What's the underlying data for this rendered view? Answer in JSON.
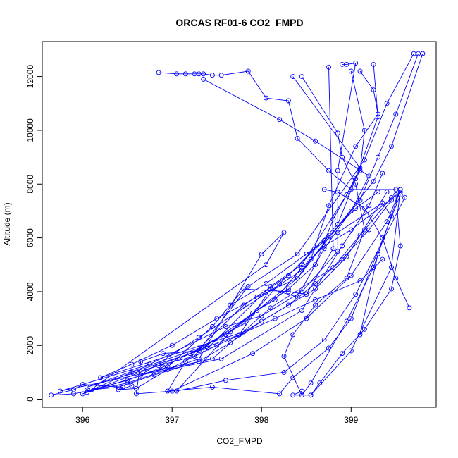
{
  "chart_data": {
    "type": "line",
    "title": "ORCAS RF01-6 CO2_FMPD",
    "xlabel": "CO2_FMPD",
    "ylabel": "Altitude (m)",
    "xlim": [
      395.55,
      399.95
    ],
    "ylim": [
      -300,
      13300
    ],
    "xticks": [
      396,
      397,
      398,
      399
    ],
    "yticks": [
      0,
      2000,
      4000,
      6000,
      8000,
      10000,
      12000
    ],
    "grid": false,
    "legend": "none",
    "series_color": "#0000ff",
    "series": [
      {
        "values": [
          {
            "x": 396.45,
            "y": 450
          },
          {
            "x": 396.0,
            "y": 550
          },
          {
            "x": 395.9,
            "y": 350
          },
          {
            "x": 395.65,
            "y": 150
          },
          {
            "x": 395.9,
            "y": 200
          },
          {
            "x": 396.5,
            "y": 600
          },
          {
            "x": 397.3,
            "y": 1500
          },
          {
            "x": 398.0,
            "y": 5400
          },
          {
            "x": 398.25,
            "y": 6200
          },
          {
            "x": 398.05,
            "y": 5000
          },
          {
            "x": 396.05,
            "y": 250
          },
          {
            "x": 397.75,
            "y": 2400
          },
          {
            "x": 398.1,
            "y": 4100
          },
          {
            "x": 398.4,
            "y": 3800
          },
          {
            "x": 398.7,
            "y": 5600
          },
          {
            "x": 399.0,
            "y": 7000
          },
          {
            "x": 399.2,
            "y": 8300
          },
          {
            "x": 398.6,
            "y": 9600
          },
          {
            "x": 398.2,
            "y": 10400
          },
          {
            "x": 397.35,
            "y": 11900
          }
        ]
      },
      {
        "values": [
          {
            "x": 396.85,
            "y": 12150
          },
          {
            "x": 397.05,
            "y": 12100
          },
          {
            "x": 397.15,
            "y": 12100
          },
          {
            "x": 397.25,
            "y": 12100
          },
          {
            "x": 397.3,
            "y": 12100
          },
          {
            "x": 397.35,
            "y": 12100
          },
          {
            "x": 397.45,
            "y": 12050
          },
          {
            "x": 397.55,
            "y": 12050
          },
          {
            "x": 397.85,
            "y": 12200
          },
          {
            "x": 398.05,
            "y": 11200
          },
          {
            "x": 398.3,
            "y": 11100
          },
          {
            "x": 398.4,
            "y": 9700
          },
          {
            "x": 398.75,
            "y": 8500
          },
          {
            "x": 399.0,
            "y": 7800
          },
          {
            "x": 399.5,
            "y": 7800
          }
        ]
      },
      {
        "values": [
          {
            "x": 398.45,
            "y": 12000
          },
          {
            "x": 398.85,
            "y": 9900
          },
          {
            "x": 398.9,
            "y": 9000
          },
          {
            "x": 399.05,
            "y": 8000
          },
          {
            "x": 399.15,
            "y": 6300
          },
          {
            "x": 398.95,
            "y": 4500
          },
          {
            "x": 398.6,
            "y": 3500
          },
          {
            "x": 398.35,
            "y": 2400
          },
          {
            "x": 398.25,
            "y": 1600
          },
          {
            "x": 398.45,
            "y": 150
          },
          {
            "x": 398.55,
            "y": 600
          },
          {
            "x": 398.95,
            "y": 2900
          },
          {
            "x": 399.25,
            "y": 4900
          },
          {
            "x": 399.55,
            "y": 7800
          },
          {
            "x": 399.45,
            "y": 4900
          },
          {
            "x": 399.0,
            "y": 1800
          },
          {
            "x": 398.55,
            "y": 150
          }
        ]
      },
      {
        "values": [
          {
            "x": 398.75,
            "y": 12350
          },
          {
            "x": 398.8,
            "y": 5600
          },
          {
            "x": 398.5,
            "y": 3900
          },
          {
            "x": 398.3,
            "y": 4000
          },
          {
            "x": 397.8,
            "y": 4100
          },
          {
            "x": 397.45,
            "y": 2700
          },
          {
            "x": 396.95,
            "y": 1200
          },
          {
            "x": 396.0,
            "y": 200
          },
          {
            "x": 396.55,
            "y": 1000
          },
          {
            "x": 397.4,
            "y": 1900
          },
          {
            "x": 398.1,
            "y": 4200
          },
          {
            "x": 398.45,
            "y": 5000
          },
          {
            "x": 398.95,
            "y": 7600
          },
          {
            "x": 399.1,
            "y": 8600
          },
          {
            "x": 398.35,
            "y": 12000
          }
        ]
      },
      {
        "values": [
          {
            "x": 398.9,
            "y": 12450
          },
          {
            "x": 398.95,
            "y": 12450
          },
          {
            "x": 399.05,
            "y": 12500
          },
          {
            "x": 398.85,
            "y": 8500
          },
          {
            "x": 398.85,
            "y": 5500
          },
          {
            "x": 398.45,
            "y": 4000
          },
          {
            "x": 398.0,
            "y": 3100
          },
          {
            "x": 397.6,
            "y": 2700
          },
          {
            "x": 396.75,
            "y": 1300
          },
          {
            "x": 395.75,
            "y": 300
          },
          {
            "x": 397.45,
            "y": 1500
          },
          {
            "x": 398.1,
            "y": 3400
          },
          {
            "x": 398.8,
            "y": 4900
          },
          {
            "x": 399.1,
            "y": 6100
          },
          {
            "x": 399.45,
            "y": 7500
          }
        ]
      },
      {
        "values": [
          {
            "x": 399.0,
            "y": 12200
          },
          {
            "x": 399.15,
            "y": 10000
          },
          {
            "x": 399.1,
            "y": 8500
          },
          {
            "x": 398.8,
            "y": 6700
          },
          {
            "x": 398.6,
            "y": 5000
          },
          {
            "x": 398.3,
            "y": 4100
          },
          {
            "x": 397.95,
            "y": 3300
          },
          {
            "x": 397.3,
            "y": 1800
          },
          {
            "x": 396.9,
            "y": 1700
          },
          {
            "x": 396.65,
            "y": 1400
          },
          {
            "x": 396.6,
            "y": 200
          },
          {
            "x": 397.0,
            "y": 300
          },
          {
            "x": 397.9,
            "y": 1700
          },
          {
            "x": 398.5,
            "y": 3000
          },
          {
            "x": 399.0,
            "y": 4600
          },
          {
            "x": 399.4,
            "y": 6600
          },
          {
            "x": 399.55,
            "y": 7800
          }
        ]
      },
      {
        "values": [
          {
            "x": 399.1,
            "y": 12200
          },
          {
            "x": 399.25,
            "y": 11500
          },
          {
            "x": 399.3,
            "y": 10600
          },
          {
            "x": 399.05,
            "y": 9400
          },
          {
            "x": 398.75,
            "y": 7200
          },
          {
            "x": 398.55,
            "y": 5200
          },
          {
            "x": 398.4,
            "y": 4500
          },
          {
            "x": 397.65,
            "y": 2500
          },
          {
            "x": 397.05,
            "y": 300
          },
          {
            "x": 397.6,
            "y": 700
          },
          {
            "x": 398.25,
            "y": 1000
          },
          {
            "x": 398.7,
            "y": 2200
          },
          {
            "x": 399.05,
            "y": 3900
          },
          {
            "x": 399.6,
            "y": 7500
          }
        ]
      },
      {
        "values": [
          {
            "x": 399.25,
            "y": 12450
          },
          {
            "x": 399.3,
            "y": 10500
          },
          {
            "x": 399.05,
            "y": 8200
          },
          {
            "x": 398.85,
            "y": 6500
          },
          {
            "x": 398.3,
            "y": 4600
          },
          {
            "x": 397.8,
            "y": 3500
          },
          {
            "x": 397.15,
            "y": 1400
          },
          {
            "x": 396.95,
            "y": 300
          },
          {
            "x": 397.45,
            "y": 450
          },
          {
            "x": 398.2,
            "y": 200
          },
          {
            "x": 398.35,
            "y": 800
          },
          {
            "x": 398.75,
            "y": 1900
          },
          {
            "x": 399.0,
            "y": 3000
          },
          {
            "x": 399.55,
            "y": 7600
          }
        ]
      },
      {
        "values": [
          {
            "x": 399.75,
            "y": 12850
          },
          {
            "x": 399.5,
            "y": 10600
          },
          {
            "x": 399.3,
            "y": 9000
          },
          {
            "x": 399.1,
            "y": 7400
          },
          {
            "x": 398.45,
            "y": 4800
          },
          {
            "x": 397.3,
            "y": 2300
          },
          {
            "x": 396.65,
            "y": 900
          },
          {
            "x": 397.55,
            "y": 1500
          },
          {
            "x": 398.45,
            "y": 3300
          },
          {
            "x": 398.9,
            "y": 5700
          },
          {
            "x": 399.2,
            "y": 7200
          },
          {
            "x": 399.35,
            "y": 8400
          }
        ]
      },
      {
        "values": [
          {
            "x": 399.7,
            "y": 12850
          },
          {
            "x": 399.4,
            "y": 11000
          },
          {
            "x": 399.15,
            "y": 8900
          },
          {
            "x": 398.4,
            "y": 5400
          },
          {
            "x": 397.85,
            "y": 4200
          },
          {
            "x": 397.25,
            "y": 1600
          },
          {
            "x": 396.85,
            "y": 1250
          },
          {
            "x": 396.05,
            "y": 450
          },
          {
            "x": 397.3,
            "y": 1900
          },
          {
            "x": 397.8,
            "y": 2800
          },
          {
            "x": 398.2,
            "y": 4300
          },
          {
            "x": 398.7,
            "y": 5900
          },
          {
            "x": 399.05,
            "y": 7100
          },
          {
            "x": 399.3,
            "y": 7700
          }
        ]
      },
      {
        "values": [
          {
            "x": 399.8,
            "y": 12850
          },
          {
            "x": 399.45,
            "y": 9400
          },
          {
            "x": 399.25,
            "y": 8100
          },
          {
            "x": 398.75,
            "y": 6000
          },
          {
            "x": 398.4,
            "y": 4500
          },
          {
            "x": 397.95,
            "y": 3800
          },
          {
            "x": 397.5,
            "y": 3000
          },
          {
            "x": 397.0,
            "y": 2000
          },
          {
            "x": 396.55,
            "y": 1300
          },
          {
            "x": 396.2,
            "y": 800
          },
          {
            "x": 397.8,
            "y": 2500
          },
          {
            "x": 398.6,
            "y": 4100
          },
          {
            "x": 398.95,
            "y": 5300
          },
          {
            "x": 399.4,
            "y": 7700
          }
        ]
      },
      {
        "values": [
          {
            "x": 399.55,
            "y": 7700
          },
          {
            "x": 399.0,
            "y": 6300
          },
          {
            "x": 398.7,
            "y": 5700
          },
          {
            "x": 398.45,
            "y": 4900
          },
          {
            "x": 398.15,
            "y": 3700
          },
          {
            "x": 397.9,
            "y": 3200
          },
          {
            "x": 397.6,
            "y": 2400
          },
          {
            "x": 397.2,
            "y": 1700
          },
          {
            "x": 396.9,
            "y": 1200
          },
          {
            "x": 396.5,
            "y": 700
          },
          {
            "x": 396.1,
            "y": 350
          },
          {
            "x": 396.4,
            "y": 450
          },
          {
            "x": 396.8,
            "y": 900
          },
          {
            "x": 397.3,
            "y": 1400
          },
          {
            "x": 397.65,
            "y": 2100
          },
          {
            "x": 398.0,
            "y": 2900
          },
          {
            "x": 398.3,
            "y": 3500
          },
          {
            "x": 398.6,
            "y": 4300
          },
          {
            "x": 398.9,
            "y": 5200
          },
          {
            "x": 399.2,
            "y": 6300
          },
          {
            "x": 399.45,
            "y": 7400
          }
        ]
      },
      {
        "values": [
          {
            "x": 399.65,
            "y": 3400
          },
          {
            "x": 399.5,
            "y": 4500
          },
          {
            "x": 399.35,
            "y": 6000
          },
          {
            "x": 399.15,
            "y": 7100
          },
          {
            "x": 398.85,
            "y": 7700
          },
          {
            "x": 398.7,
            "y": 7800
          }
        ]
      },
      {
        "values": [
          {
            "x": 399.1,
            "y": 2400
          },
          {
            "x": 399.3,
            "y": 5400
          },
          {
            "x": 399.45,
            "y": 6800
          },
          {
            "x": 399.35,
            "y": 7300
          },
          {
            "x": 398.85,
            "y": 6200
          },
          {
            "x": 398.5,
            "y": 5400
          },
          {
            "x": 398.05,
            "y": 4300
          },
          {
            "x": 397.65,
            "y": 3500
          }
        ]
      },
      {
        "values": [
          {
            "x": 398.45,
            "y": 300
          },
          {
            "x": 398.35,
            "y": 150
          },
          {
            "x": 398.55,
            "y": 150
          },
          {
            "x": 398.65,
            "y": 600
          },
          {
            "x": 398.9,
            "y": 1700
          },
          {
            "x": 399.15,
            "y": 2600
          },
          {
            "x": 399.45,
            "y": 4100
          },
          {
            "x": 399.55,
            "y": 5700
          },
          {
            "x": 399.5,
            "y": 7600
          }
        ]
      },
      {
        "values": [
          {
            "x": 396.55,
            "y": 500
          },
          {
            "x": 396.4,
            "y": 350
          },
          {
            "x": 396.6,
            "y": 400
          },
          {
            "x": 396.95,
            "y": 1100
          },
          {
            "x": 397.5,
            "y": 2000
          },
          {
            "x": 398.15,
            "y": 3000
          },
          {
            "x": 398.6,
            "y": 3700
          },
          {
            "x": 399.1,
            "y": 4400
          },
          {
            "x": 399.35,
            "y": 5200
          }
        ]
      }
    ]
  }
}
